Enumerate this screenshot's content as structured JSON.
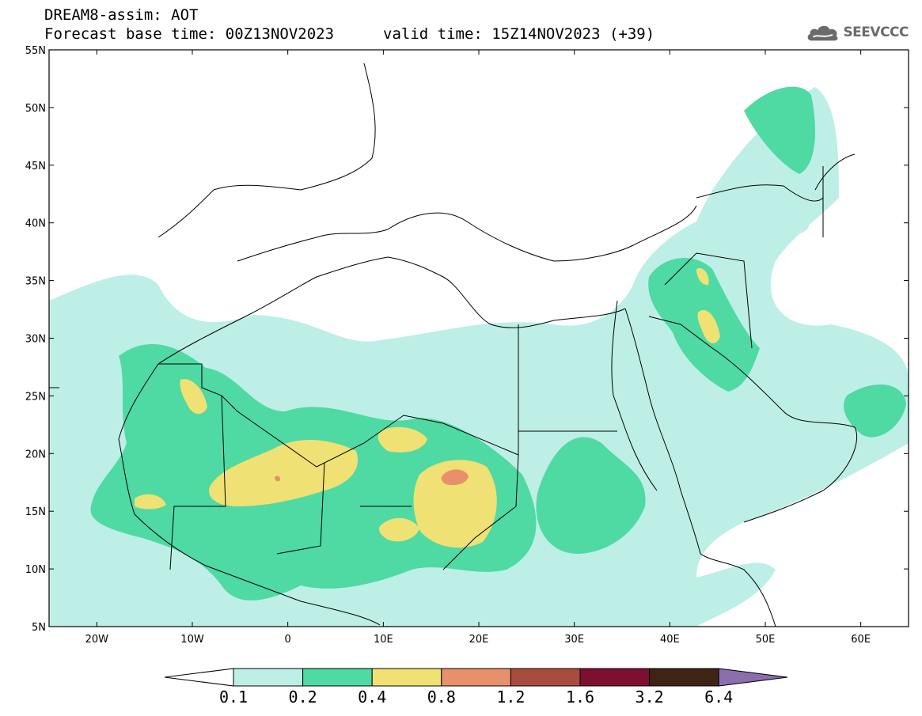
{
  "header": {
    "line1": "DREAM8-assim: AOT",
    "base_time": "Forecast base time: 00Z13NOV2023",
    "valid_time": "valid time: 15Z14NOV2023 (+39)"
  },
  "logo": {
    "text": "SEEVCCC",
    "icon": "cloud-icon"
  },
  "map": {
    "lon_ticks": [
      "20W",
      "10W",
      "0",
      "10E",
      "20E",
      "30E",
      "40E",
      "50E",
      "60E"
    ],
    "lat_ticks": [
      "55N",
      "50N",
      "45N",
      "40N",
      "35N",
      "30N",
      "25N",
      "20N",
      "15N",
      "10N",
      "5N"
    ],
    "lon_range": [
      -25,
      65
    ],
    "lat_range": [
      5,
      55
    ]
  },
  "colorbar": {
    "labels": [
      "0.1",
      "0.2",
      "0.4",
      "0.8",
      "1.2",
      "1.6",
      "3.2",
      "6.4"
    ],
    "colors": [
      "#bdefe6",
      "#4fd9a3",
      "#f0e174",
      "#e8906c",
      "#a84c40",
      "#7d1030",
      "#3e2414",
      "#8a6fae"
    ]
  }
}
